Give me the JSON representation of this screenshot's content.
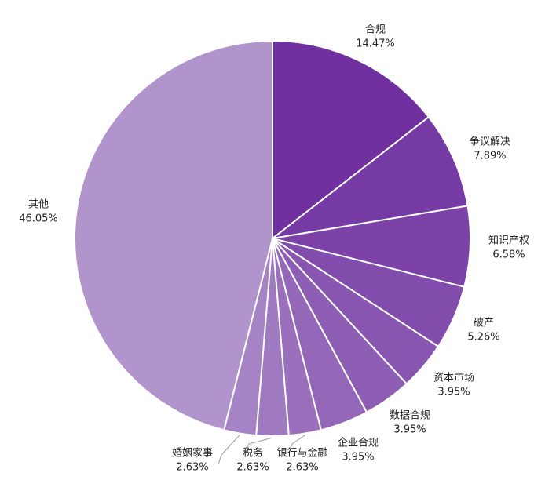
{
  "chart_data": {
    "type": "pie",
    "categories": [
      "合规",
      "争议解决",
      "知识产权",
      "破产",
      "资本市场",
      "数据合规",
      "企业合规",
      "银行与金融",
      "税务",
      "婚姻家事",
      "其他"
    ],
    "values": [
      14.47,
      7.89,
      6.58,
      5.26,
      3.95,
      3.95,
      3.95,
      2.63,
      2.63,
      2.63,
      46.05
    ],
    "value_labels": [
      "14.47%",
      "7.89%",
      "6.58%",
      "5.26%",
      "3.95%",
      "3.95%",
      "3.95%",
      "2.63%",
      "2.63%",
      "2.63%",
      "46.05%"
    ],
    "colors": [
      "#7030a0",
      "#763aa4",
      "#7c42a8",
      "#824cac",
      "#8855b0",
      "#8e5eb4",
      "#9467b8",
      "#9a70bc",
      "#a07ac0",
      "#a683c4",
      "#b294cc"
    ]
  }
}
